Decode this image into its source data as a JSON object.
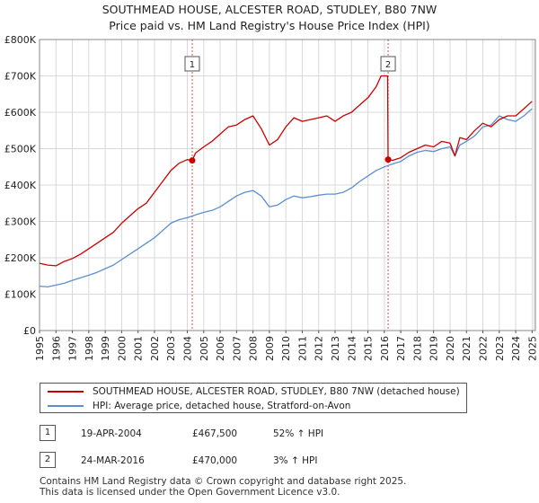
{
  "chart_data": {
    "type": "line",
    "title": "SOUTHMEAD HOUSE, ALCESTER ROAD, STUDLEY, B80 7NW",
    "subtitle": "Price paid vs. HM Land Registry's House Price Index (HPI)",
    "x_range": [
      1995,
      2025.2
    ],
    "ylim": [
      0,
      800000
    ],
    "x_ticks": [
      "1995",
      "1996",
      "1997",
      "1998",
      "1999",
      "2000",
      "2001",
      "2002",
      "2003",
      "2004",
      "2005",
      "2006",
      "2007",
      "2008",
      "2009",
      "2010",
      "2011",
      "2012",
      "2013",
      "2014",
      "2015",
      "2016",
      "2017",
      "2018",
      "2019",
      "2020",
      "2021",
      "2022",
      "2023",
      "2024",
      "2025"
    ],
    "y_ticks": [
      {
        "value": 0,
        "label": "£0"
      },
      {
        "value": 100000,
        "label": "£100K"
      },
      {
        "value": 200000,
        "label": "£200K"
      },
      {
        "value": 300000,
        "label": "£300K"
      },
      {
        "value": 400000,
        "label": "£400K"
      },
      {
        "value": 500000,
        "label": "£500K"
      },
      {
        "value": 600000,
        "label": "£600K"
      },
      {
        "value": 700000,
        "label": "£700K"
      },
      {
        "value": 800000,
        "label": "£800K"
      }
    ],
    "grid": true,
    "shaded_region": {
      "start": 2025.0,
      "end": 2025.2,
      "color": "#eeeeee"
    },
    "series": [
      {
        "name": "SOUTHMEAD HOUSE, ALCESTER ROAD, STUDLEY, B80 7NW (detached house)",
        "color": "#cc0000",
        "x": [
          1995.0,
          1995.5,
          1996.0,
          1996.5,
          1997.0,
          1997.5,
          1998.0,
          1998.5,
          1999.0,
          1999.5,
          2000.0,
          2000.5,
          2001.0,
          2001.5,
          2002.0,
          2002.5,
          2003.0,
          2003.5,
          2004.0,
          2004.3,
          2004.5,
          2005.0,
          2005.5,
          2006.0,
          2006.5,
          2007.0,
          2007.5,
          2008.0,
          2008.5,
          2009.0,
          2009.5,
          2010.0,
          2010.5,
          2011.0,
          2011.5,
          2012.0,
          2012.5,
          2013.0,
          2013.5,
          2014.0,
          2014.5,
          2015.0,
          2015.5,
          2015.8,
          2016.2,
          2016.23,
          2016.5,
          2017.0,
          2017.5,
          2018.0,
          2018.5,
          2019.0,
          2019.5,
          2020.0,
          2020.3,
          2020.6,
          2021.0,
          2021.5,
          2022.0,
          2022.5,
          2023.0,
          2023.5,
          2024.0,
          2024.5,
          2025.0
        ],
        "values": [
          185000,
          180000,
          178000,
          190000,
          198000,
          210000,
          225000,
          240000,
          255000,
          270000,
          295000,
          315000,
          335000,
          350000,
          380000,
          410000,
          440000,
          460000,
          470000,
          467500,
          488000,
          505000,
          520000,
          540000,
          560000,
          565000,
          580000,
          590000,
          555000,
          510000,
          525000,
          560000,
          585000,
          575000,
          580000,
          585000,
          590000,
          575000,
          590000,
          600000,
          620000,
          640000,
          670000,
          700000,
          700000,
          470000,
          468000,
          475000,
          490000,
          500000,
          510000,
          505000,
          520000,
          515000,
          480000,
          530000,
          525000,
          550000,
          570000,
          560000,
          580000,
          590000,
          590000,
          610000,
          630000
        ]
      },
      {
        "name": "HPI: Average price, detached house, Stratford-on-Avon",
        "color": "#5b8fd0",
        "x": [
          1995.0,
          1995.5,
          1996.0,
          1996.5,
          1997.0,
          1997.5,
          1998.0,
          1998.5,
          1999.0,
          1999.5,
          2000.0,
          2000.5,
          2001.0,
          2001.5,
          2002.0,
          2002.5,
          2003.0,
          2003.5,
          2004.0,
          2004.5,
          2005.0,
          2005.5,
          2006.0,
          2006.5,
          2007.0,
          2007.5,
          2008.0,
          2008.5,
          2009.0,
          2009.5,
          2010.0,
          2010.5,
          2011.0,
          2011.5,
          2012.0,
          2012.5,
          2013.0,
          2013.5,
          2014.0,
          2014.5,
          2015.0,
          2015.5,
          2016.0,
          2016.5,
          2017.0,
          2017.5,
          2018.0,
          2018.5,
          2019.0,
          2019.5,
          2020.0,
          2020.3,
          2020.6,
          2021.0,
          2021.5,
          2022.0,
          2022.5,
          2023.0,
          2023.5,
          2024.0,
          2024.5,
          2025.0
        ],
        "values": [
          122000,
          120000,
          125000,
          130000,
          138000,
          145000,
          152000,
          160000,
          170000,
          180000,
          195000,
          210000,
          225000,
          240000,
          255000,
          275000,
          295000,
          305000,
          310000,
          318000,
          325000,
          330000,
          340000,
          355000,
          370000,
          380000,
          385000,
          370000,
          340000,
          345000,
          360000,
          370000,
          365000,
          368000,
          372000,
          375000,
          375000,
          380000,
          392000,
          410000,
          425000,
          440000,
          450000,
          458000,
          465000,
          480000,
          490000,
          495000,
          492000,
          500000,
          505000,
          480000,
          510000,
          520000,
          535000,
          560000,
          565000,
          590000,
          580000,
          575000,
          590000,
          610000
        ]
      }
    ],
    "sales": [
      {
        "id": "1",
        "date": "19-APR-2004",
        "x": 2004.3,
        "price": 467500,
        "price_label": "£467,500",
        "hpi_change": "52% ↑ HPI"
      },
      {
        "id": "2",
        "date": "24-MAR-2016",
        "x": 2016.23,
        "price": 470000,
        "price_label": "£470,000",
        "hpi_change": "3% ↑ HPI"
      }
    ]
  },
  "footer": {
    "line1": "Contains HM Land Registry data © Crown copyright and database right 2025.",
    "line2": "This data is licensed under the Open Government Licence v3.0."
  }
}
